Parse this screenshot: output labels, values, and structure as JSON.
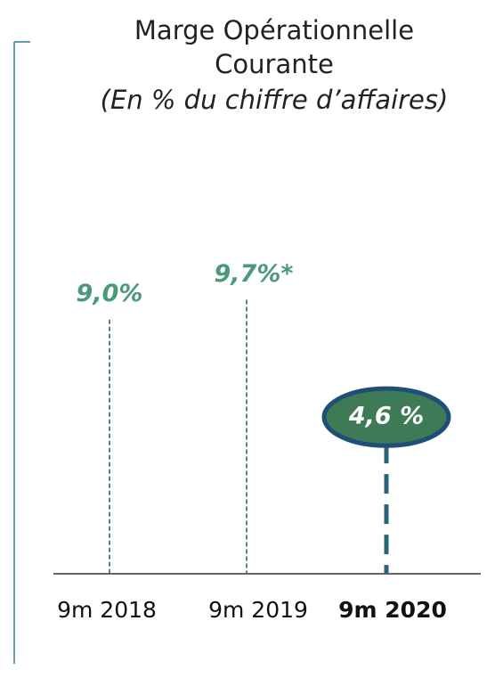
{
  "chart_data": {
    "type": "lollipop",
    "title": [
      "Marge Opérationnelle",
      "Courante"
    ],
    "subtitle": "(En % du chiffre d’affaires)",
    "categories": [
      "9m 2018",
      "9m 2019",
      "9m 2020"
    ],
    "values": [
      9.0,
      9.7,
      4.6
    ],
    "value_labels": [
      "9,0%",
      "9,7%*",
      "4,6 %"
    ],
    "color": "#2a6477",
    "label_color": "#4a9a7a"
  }
}
